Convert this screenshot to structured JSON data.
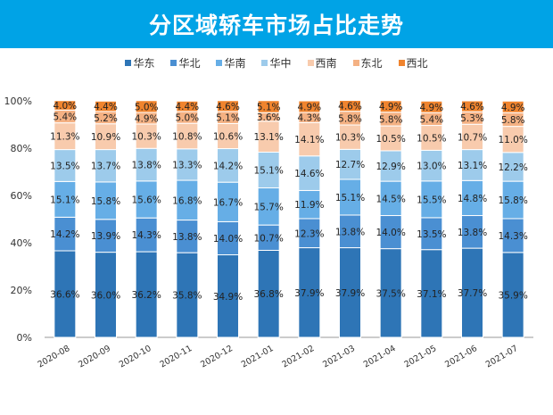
{
  "title": "分区域轿车市场占比走势",
  "chart_data": {
    "type": "bar",
    "stacked": true,
    "title": "分区域轿车市场占比走势",
    "categories": [
      "2020-08",
      "2020-09",
      "2020-10",
      "2020-11",
      "2020-12",
      "2021-01",
      "2021-02",
      "2021-03",
      "2021-04",
      "2021-05",
      "2021-06",
      "2021-07"
    ],
    "series": [
      {
        "name": "华东",
        "color": "#2E75B6",
        "values": [
          36.6,
          36.0,
          36.2,
          35.8,
          34.9,
          36.8,
          37.9,
          37.9,
          37.5,
          37.1,
          37.7,
          35.9
        ]
      },
      {
        "name": "华北",
        "color": "#4A8FD2",
        "values": [
          14.2,
          13.9,
          14.3,
          13.8,
          14.0,
          10.7,
          12.3,
          13.8,
          14.0,
          13.5,
          13.8,
          14.3
        ]
      },
      {
        "name": "华南",
        "color": "#66AEE6",
        "values": [
          15.1,
          15.8,
          15.6,
          16.8,
          16.7,
          15.7,
          11.9,
          15.1,
          14.5,
          15.5,
          14.8,
          15.8
        ]
      },
      {
        "name": "华中",
        "color": "#9DCBEB",
        "values": [
          13.5,
          13.7,
          13.8,
          13.3,
          14.2,
          15.1,
          14.6,
          12.7,
          12.9,
          13.0,
          13.1,
          12.2
        ]
      },
      {
        "name": "西南",
        "color": "#F8CBAD",
        "values": [
          11.3,
          10.9,
          10.3,
          10.8,
          10.6,
          13.1,
          14.1,
          10.3,
          10.5,
          10.5,
          10.7,
          11.0
        ]
      },
      {
        "name": "东北",
        "color": "#F4B183",
        "values": [
          5.4,
          5.2,
          4.9,
          5.0,
          5.1,
          3.6,
          4.3,
          5.8,
          5.8,
          5.4,
          5.3,
          5.8
        ]
      },
      {
        "name": "西北",
        "color": "#F0842E",
        "values": [
          4.0,
          4.4,
          5.0,
          4.4,
          4.6,
          5.1,
          4.9,
          4.6,
          4.9,
          4.9,
          4.6,
          4.9
        ]
      }
    ],
    "yticks": [
      "0%",
      "20%",
      "40%",
      "60%",
      "80%",
      "100%"
    ],
    "ylim": [
      0,
      100
    ],
    "legend": "top",
    "grid": false
  }
}
